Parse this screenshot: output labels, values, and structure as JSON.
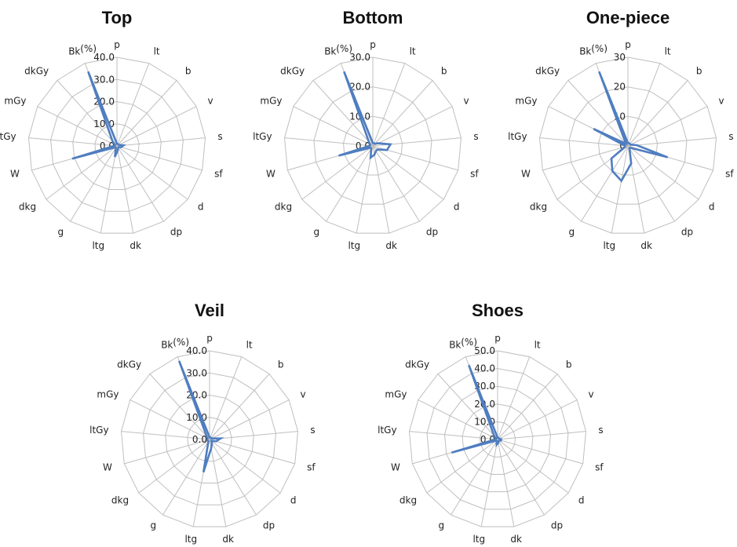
{
  "chart_data": [
    {
      "type": "radar",
      "title": "Top",
      "unit": "(%)",
      "axes": [
        "p",
        "lt",
        "b",
        "v",
        "s",
        "sf",
        "d",
        "dp",
        "dk",
        "ltg",
        "g",
        "dkg",
        "W",
        "ltGy",
        "mGy",
        "dkGy",
        "Bk"
      ],
      "ticks": [
        "0.0",
        "10.0",
        "20.0",
        "30.0",
        "40.0"
      ],
      "rmax": 40,
      "values": [
        1.0,
        1.0,
        1.0,
        1.0,
        3.0,
        2.0,
        1.0,
        1.0,
        2.0,
        5.0,
        1.0,
        1.0,
        21.0,
        1.0,
        1.0,
        3.0,
        36.0
      ]
    },
    {
      "type": "radar",
      "title": "Bottom",
      "unit": "(%)",
      "axes": [
        "p",
        "lt",
        "b",
        "v",
        "s",
        "sf",
        "d",
        "dp",
        "dk",
        "ltg",
        "g",
        "dkg",
        "W",
        "ltGy",
        "mGy",
        "dkGy",
        "Bk"
      ],
      "ticks": [
        "0.0",
        "10.0",
        "20.0",
        "30.0"
      ],
      "rmax": 30,
      "values": [
        1.0,
        1.0,
        1.0,
        2.0,
        6.0,
        5.0,
        2.0,
        2.0,
        3.0,
        4.0,
        1.0,
        1.0,
        12.0,
        1.0,
        1.0,
        2.0,
        27.0
      ]
    },
    {
      "type": "radar",
      "title": "One-piece",
      "unit": "(%)",
      "axes": [
        "p",
        "lt",
        "b",
        "v",
        "s",
        "sf",
        "d",
        "dp",
        "dk",
        "ltg",
        "g",
        "dkg",
        "W",
        "ltGy",
        "mGy",
        "dkGy",
        "Bk"
      ],
      "ticks": [
        "0",
        "10",
        "20",
        "30"
      ],
      "rmax": 30,
      "values": [
        1.0,
        1.0,
        1.0,
        1.0,
        3.0,
        14.0,
        1.0,
        1.0,
        6.0,
        12.0,
        10.0,
        7.0,
        1.0,
        1.0,
        13.0,
        1.0,
        27.0
      ]
    },
    {
      "type": "radar",
      "title": "Veil",
      "unit": "(%)",
      "axes": [
        "p",
        "lt",
        "b",
        "v",
        "s",
        "sf",
        "d",
        "dp",
        "dk",
        "ltg",
        "g",
        "dkg",
        "W",
        "ltGy",
        "mGy",
        "dkGy",
        "Bk"
      ],
      "ticks": [
        "0.0",
        "10.0",
        "20.0",
        "30.0",
        "40.0"
      ],
      "rmax": 40,
      "values": [
        1.0,
        1.0,
        1.0,
        1.0,
        5.0,
        3.0,
        1.0,
        2.0,
        4.0,
        15.0,
        1.0,
        1.0,
        1.0,
        1.0,
        1.0,
        2.0,
        38.0
      ]
    },
    {
      "type": "radar",
      "title": "Shoes",
      "unit": "(%)",
      "axes": [
        "p",
        "lt",
        "b",
        "v",
        "s",
        "sf",
        "d",
        "dp",
        "dk",
        "ltg",
        "g",
        "dkg",
        "W",
        "ltGy",
        "mGy",
        "dkGy",
        "Bk"
      ],
      "ticks": [
        "0.0",
        "10.0",
        "20.0",
        "30.0",
        "40.0",
        "50.0"
      ],
      "rmax": 50,
      "values": [
        1.0,
        1.0,
        1.0,
        1.0,
        2.0,
        2.0,
        1.0,
        1.0,
        2.0,
        3.0,
        1.0,
        1.0,
        27.0,
        1.0,
        1.0,
        3.0,
        45.0
      ]
    }
  ],
  "colors": {
    "series": "#4f7dc0",
    "grid": "#bfbfbf"
  }
}
